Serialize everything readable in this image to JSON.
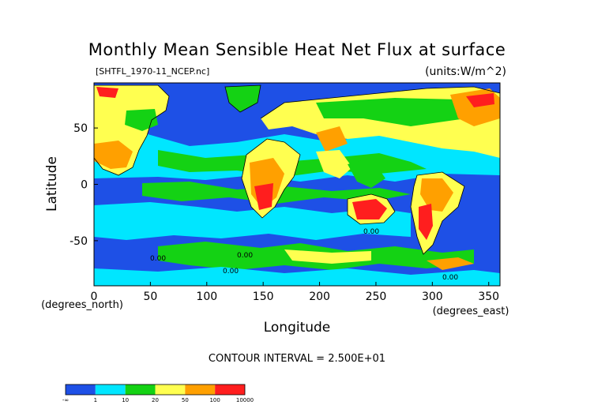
{
  "chart_data": {
    "type": "heatmap",
    "title": "Monthly Mean Sensible Heat Net Flux at surface",
    "source_label": "[SHTFL_1970-11_NCEP.nc]",
    "units_label": "(units:W/m^2)",
    "xlabel": "Longitude",
    "ylabel": "Latitude",
    "x_unit_label": "(degrees_east)",
    "y_unit_label": "(degrees_north)",
    "xlim": [
      0,
      360
    ],
    "ylim": [
      -90,
      90
    ],
    "x_ticks": [
      0,
      50,
      100,
      150,
      200,
      250,
      300,
      350
    ],
    "y_ticks": [
      50,
      0,
      -50
    ],
    "contour_interval_text": "CONTOUR INTERVAL = 2.500E+01",
    "contour_labels": [
      "0.00",
      "0.00",
      "0.00",
      "0.00",
      "0.00"
    ],
    "colorbar": {
      "tick_labels": [
        "-∞",
        "1",
        "10",
        "20",
        "50",
        "100",
        "10000"
      ],
      "bins": [
        {
          "from": "-∞",
          "to": "1",
          "color": "#1e50e6"
        },
        {
          "from": "1",
          "to": "10",
          "color": "#00e6ff"
        },
        {
          "from": "10",
          "to": "20",
          "color": "#14d214"
        },
        {
          "from": "20",
          "to": "50",
          "color": "#ffff50"
        },
        {
          "from": "50",
          "to": "100",
          "color": "#ffa000"
        },
        {
          "from": "100",
          "to": "10000",
          "color": "#ff1e1e"
        }
      ]
    },
    "grid": false
  }
}
